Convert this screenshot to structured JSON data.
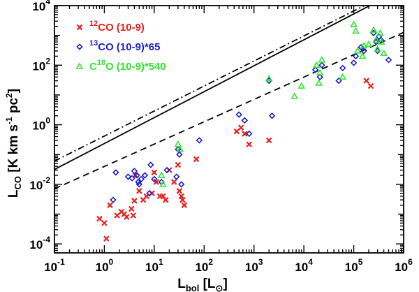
{
  "chart_data": {
    "type": "scatter",
    "xscale": "log",
    "yscale": "log",
    "xlim": [
      0.1,
      1000000
    ],
    "ylim": [
      5e-05,
      10000
    ],
    "x_ticks": [
      {
        "value": 0.1,
        "base": "10",
        "exp": "-1"
      },
      {
        "value": 1,
        "base": "10",
        "exp": "0"
      },
      {
        "value": 10,
        "base": "10",
        "exp": "1"
      },
      {
        "value": 100,
        "base": "10",
        "exp": "2"
      },
      {
        "value": 1000,
        "base": "10",
        "exp": "3"
      },
      {
        "value": 10000,
        "base": "10",
        "exp": "4"
      },
      {
        "value": 100000,
        "base": "10",
        "exp": "5"
      },
      {
        "value": 1000000,
        "base": "10",
        "exp": "6"
      }
    ],
    "y_ticks": [
      {
        "value": 0.0001,
        "base": "10",
        "exp": "-4"
      },
      {
        "value": 0.01,
        "base": "10",
        "exp": "-2"
      },
      {
        "value": 1,
        "base": "10",
        "exp": "0"
      },
      {
        "value": 100,
        "base": "10",
        "exp": "2"
      },
      {
        "value": 10000,
        "base": "10",
        "exp": "4"
      }
    ],
    "xlabel": {
      "main": "L",
      "sub": "bol",
      "rest": " [L",
      "sym": "⊙",
      "close": "]"
    },
    "ylabel": {
      "main": "L",
      "sub": "CO",
      "part1": " [K km s",
      "sup1": "-1",
      "part2": " pc",
      "sup2": "2",
      "close": "]"
    },
    "legend_position": "top-left",
    "series": [
      {
        "id": "12co",
        "legend": {
          "pre": "",
          "sup": "12",
          "main": "CO (10-9)"
        },
        "marker": "cross",
        "color": "#e8201c",
        "points": [
          [
            0.8,
            0.0007
          ],
          [
            1.0,
            0.0005
          ],
          [
            1.1,
            0.00015
          ],
          [
            1.3,
            0.002
          ],
          [
            1.8,
            0.0009
          ],
          [
            2.2,
            0.0012
          ],
          [
            2.5,
            0.001
          ],
          [
            2.8,
            0.0008
          ],
          [
            3.5,
            0.0015
          ],
          [
            3.8,
            0.0009
          ],
          [
            4.0,
            0.0028
          ],
          [
            4.2,
            0.02
          ],
          [
            5.0,
            0.006
          ],
          [
            6.0,
            0.003
          ],
          [
            7.0,
            0.004
          ],
          [
            9.0,
            0.005
          ],
          [
            10.0,
            0.025
          ],
          [
            11.0,
            0.012
          ],
          [
            13.0,
            0.004
          ],
          [
            15.0,
            0.004
          ],
          [
            17.0,
            0.003
          ],
          [
            20.0,
            0.03
          ],
          [
            25.0,
            0.012
          ],
          [
            30.0,
            0.045
          ],
          [
            32.0,
            0.006
          ],
          [
            35.0,
            0.004
          ],
          [
            37.0,
            0.003
          ],
          [
            40.0,
            0.002
          ],
          [
            70.0,
            0.07
          ],
          [
            450.0,
            0.6
          ],
          [
            550.0,
            0.8
          ],
          [
            650.0,
            0.5
          ],
          [
            800.0,
            0.22
          ],
          [
            2000.0,
            0.3
          ],
          [
            180000.0,
            30
          ],
          [
            220000.0,
            20
          ]
        ]
      },
      {
        "id": "13co",
        "legend": {
          "pre": "",
          "sup": "13",
          "main": "CO (10-9)*65"
        },
        "marker": "diamond",
        "color": "#1f1fc9",
        "points": [
          [
            1.5,
            0.003
          ],
          [
            1.7,
            0.025
          ],
          [
            3.0,
            0.018
          ],
          [
            3.6,
            0.016
          ],
          [
            4.0,
            0.028
          ],
          [
            4.5,
            0.02
          ],
          [
            4.8,
            0.012
          ],
          [
            5.0,
            0.01
          ],
          [
            5.5,
            0.015
          ],
          [
            6.5,
            0.02
          ],
          [
            8.0,
            0.005
          ],
          [
            8.5,
            0.045
          ],
          [
            10.0,
            0.015
          ],
          [
            14.0,
            0.012
          ],
          [
            18.0,
            0.03
          ],
          [
            28.0,
            0.018
          ],
          [
            30.0,
            0.15
          ],
          [
            32.0,
            0.1
          ],
          [
            35.0,
            0.01
          ],
          [
            80.0,
            0.3
          ],
          [
            500.0,
            2.2
          ],
          [
            650.0,
            1.4
          ],
          [
            800.0,
            0.5
          ],
          [
            2000.0,
            30
          ],
          [
            2300.0,
            2
          ],
          [
            17000.0,
            70
          ],
          [
            21000.0,
            40
          ],
          [
            23000.0,
            100
          ],
          [
            50000.0,
            30
          ],
          [
            60000.0,
            80
          ],
          [
            100000.0,
            120
          ],
          [
            110000.0,
            200
          ],
          [
            140000.0,
            400
          ],
          [
            160000.0,
            300
          ],
          [
            250000.0,
            1200
          ],
          [
            280000.0,
            600
          ],
          [
            300000.0,
            300
          ],
          [
            320000.0,
            900
          ],
          [
            350000.0,
            700
          ],
          [
            500000.0,
            150
          ]
        ]
      },
      {
        "id": "c18o",
        "legend": {
          "pre": "C",
          "sup": "18",
          "main": "O (10-9)*540"
        },
        "marker": "triangle",
        "color": "#2ee82e",
        "points": [
          [
            14.0,
            0.02
          ],
          [
            15.0,
            0.01
          ],
          [
            30.0,
            0.22
          ],
          [
            33.0,
            0.15
          ],
          [
            2000.0,
            35
          ],
          [
            6500.0,
            9
          ],
          [
            9000.0,
            20
          ],
          [
            18000.0,
            100
          ],
          [
            20000.0,
            25
          ],
          [
            21000.0,
            55
          ],
          [
            23000.0,
            150
          ],
          [
            60000.0,
            40
          ],
          [
            100000.0,
            2300
          ],
          [
            110000.0,
            1400
          ],
          [
            120000.0,
            300
          ],
          [
            150000.0,
            200
          ],
          [
            160000.0,
            450
          ],
          [
            200000.0,
            500
          ],
          [
            250000.0,
            1500
          ],
          [
            280000.0,
            700
          ],
          [
            300000.0,
            350
          ],
          [
            340000.0,
            1200
          ],
          [
            360000.0,
            600
          ],
          [
            400000.0,
            250
          ]
        ]
      }
    ],
    "fits": [
      {
        "style": "solid",
        "a": -0.63,
        "b": 0.87
      },
      {
        "style": "dashdot",
        "a": -0.38,
        "b": 0.84
      },
      {
        "style": "dashed",
        "a": -1.4,
        "b": 0.75
      }
    ]
  }
}
